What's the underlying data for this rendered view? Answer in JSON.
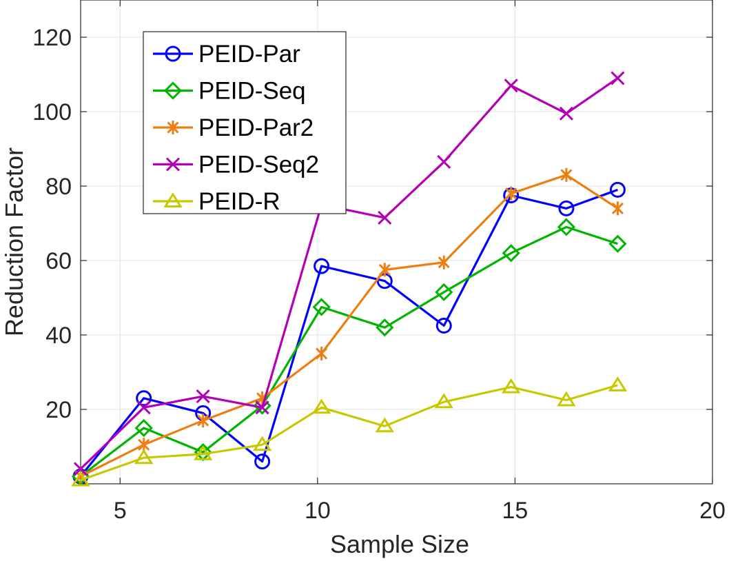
{
  "chart_data": {
    "type": "line",
    "xlabel": "Sample Size",
    "ylabel": "Reduction Factor",
    "xlim": [
      4,
      20
    ],
    "ylim": [
      0,
      130
    ],
    "xticks": [
      5,
      10,
      15,
      20
    ],
    "yticks": [
      20,
      40,
      60,
      80,
      100,
      120
    ],
    "grid": true,
    "legend_position": "top-left",
    "series": [
      {
        "name": "PEID-Par",
        "color": "#0000ff",
        "marker": "circle",
        "x": [
          4.0,
          5.6,
          7.1,
          8.6,
          10.1,
          11.7,
          13.2,
          14.9,
          16.3,
          17.6
        ],
        "y": [
          2,
          23,
          19,
          6,
          58.5,
          54.5,
          42.5,
          77.5,
          74,
          79
        ]
      },
      {
        "name": "PEID-Seq",
        "color": "#00b400",
        "marker": "diamond",
        "x": [
          4.0,
          5.6,
          7.1,
          8.6,
          10.1,
          11.7,
          13.2,
          14.9,
          16.3,
          17.6
        ],
        "y": [
          2,
          15,
          8.5,
          21,
          47.5,
          42,
          51.5,
          62,
          69,
          64.5
        ]
      },
      {
        "name": "PEID-Par2",
        "color": "#ed7f11",
        "marker": "asterisk",
        "x": [
          4.0,
          5.6,
          7.1,
          8.6,
          10.1,
          11.7,
          13.2,
          14.9,
          16.3,
          17.6
        ],
        "y": [
          2,
          10.5,
          17,
          23,
          35,
          57.5,
          59.5,
          78,
          83,
          74
        ]
      },
      {
        "name": "PEID-Seq2",
        "color": "#b400b4",
        "marker": "x",
        "x": [
          4.0,
          5.6,
          7.1,
          8.6,
          10.1,
          11.7,
          13.2,
          14.9,
          16.3,
          17.6
        ],
        "y": [
          4,
          20.5,
          23.5,
          20.5,
          75,
          71.5,
          86.5,
          107,
          99.5,
          109
        ]
      },
      {
        "name": "PEID-R",
        "color": "#c8c800",
        "marker": "triangle",
        "x": [
          4.0,
          5.6,
          7.1,
          8.6,
          10.1,
          11.7,
          13.2,
          14.9,
          16.3,
          17.6
        ],
        "y": [
          1,
          7,
          8,
          10.5,
          20.5,
          15.5,
          22,
          26,
          22.5,
          26.5
        ]
      }
    ]
  }
}
